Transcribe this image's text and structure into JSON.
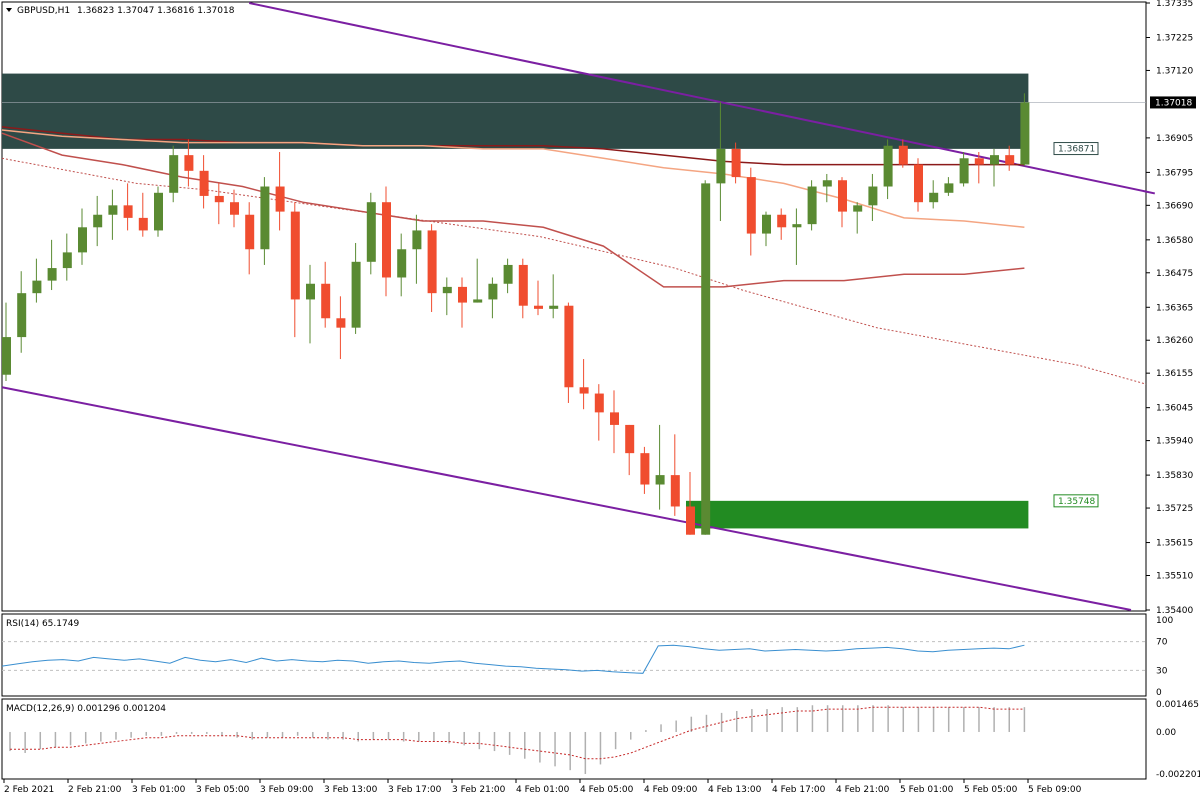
{
  "header": {
    "symbol": "GBPUSD,H1",
    "ohlc": "1.36823 1.37047 1.36816 1.37018"
  },
  "price_axis": {
    "ticks": [
      "1.37335",
      "1.37225",
      "1.37120",
      "1.37018",
      "1.36905",
      "1.36871",
      "1.36795",
      "1.36690",
      "1.36580",
      "1.36475",
      "1.36365",
      "1.36260",
      "1.36155",
      "1.36045",
      "1.35940",
      "1.35830",
      "1.35748",
      "1.35725",
      "1.35615",
      "1.35510",
      "1.35400"
    ],
    "range": [
      1.354,
      1.37335
    ],
    "current_price": "1.37018",
    "level_upper": "1.36871",
    "level_lower": "1.35748"
  },
  "rsi": {
    "label": "RSI(14) 65.1749",
    "ticks": [
      "70",
      "30",
      "0"
    ],
    "top_tick": "100"
  },
  "macd": {
    "label": "MACD(12,26,9) 0.001296 0.001204",
    "ticks": [
      "0.001465",
      "0.00",
      "-0.002201"
    ]
  },
  "time_axis": {
    "labels": [
      "2 Feb 2021",
      "2 Feb 21:00",
      "3 Feb 01:00",
      "3 Feb 05:00",
      "3 Feb 09:00",
      "3 Feb 13:00",
      "3 Feb 17:00",
      "3 Feb 21:00",
      "4 Feb 01:00",
      "4 Feb 05:00",
      "4 Feb 09:00",
      "4 Feb 13:00",
      "4 Feb 17:00",
      "4 Feb 21:00",
      "5 Feb 01:00",
      "5 Feb 05:00",
      "5 Feb 09:00"
    ]
  },
  "colors": {
    "bull": "#5a8a32",
    "bear": "#f04d2f",
    "channel": "#7b1fa2",
    "zone_top": "#2e4a47",
    "zone_bottom": "#228b22",
    "ma_dark": "#8b1a1a",
    "ma_light": "#f4a582",
    "ma_mid": "#c0504d",
    "rsi_line": "#3a8fd0",
    "macd_signal": "#c62828",
    "grid": "#c0c0c0"
  },
  "chart_data": {
    "type": "candlestick",
    "symbol": "GBPUSD",
    "timeframe": "H1",
    "ylim": [
      1.354,
      1.37335
    ],
    "candles": [
      {
        "o": 1.3615,
        "h": 1.3638,
        "l": 1.3613,
        "c": 1.3627
      },
      {
        "o": 1.3627,
        "h": 1.3648,
        "l": 1.3622,
        "c": 1.3641
      },
      {
        "o": 1.3641,
        "h": 1.3652,
        "l": 1.3638,
        "c": 1.3645
      },
      {
        "o": 1.3645,
        "h": 1.3658,
        "l": 1.3642,
        "c": 1.3649
      },
      {
        "o": 1.3649,
        "h": 1.366,
        "l": 1.3645,
        "c": 1.3654
      },
      {
        "o": 1.3654,
        "h": 1.3668,
        "l": 1.365,
        "c": 1.3662
      },
      {
        "o": 1.3662,
        "h": 1.3672,
        "l": 1.3656,
        "c": 1.3666
      },
      {
        "o": 1.3666,
        "h": 1.3674,
        "l": 1.3658,
        "c": 1.3669
      },
      {
        "o": 1.3669,
        "h": 1.3676,
        "l": 1.3661,
        "c": 1.3665
      },
      {
        "o": 1.3665,
        "h": 1.3673,
        "l": 1.3659,
        "c": 1.3661
      },
      {
        "o": 1.3661,
        "h": 1.3675,
        "l": 1.3659,
        "c": 1.3673
      },
      {
        "o": 1.3673,
        "h": 1.3688,
        "l": 1.367,
        "c": 1.3685
      },
      {
        "o": 1.3685,
        "h": 1.369,
        "l": 1.3675,
        "c": 1.368
      },
      {
        "o": 1.368,
        "h": 1.3685,
        "l": 1.3668,
        "c": 1.3672
      },
      {
        "o": 1.3672,
        "h": 1.3676,
        "l": 1.3663,
        "c": 1.367
      },
      {
        "o": 1.367,
        "h": 1.3674,
        "l": 1.3662,
        "c": 1.3666
      },
      {
        "o": 1.3666,
        "h": 1.367,
        "l": 1.3647,
        "c": 1.3655
      },
      {
        "o": 1.3655,
        "h": 1.3678,
        "l": 1.365,
        "c": 1.3675
      },
      {
        "o": 1.3675,
        "h": 1.3686,
        "l": 1.3661,
        "c": 1.3667
      },
      {
        "o": 1.3667,
        "h": 1.367,
        "l": 1.3627,
        "c": 1.3639
      },
      {
        "o": 1.3639,
        "h": 1.365,
        "l": 1.3625,
        "c": 1.3644
      },
      {
        "o": 1.3644,
        "h": 1.3651,
        "l": 1.363,
        "c": 1.3633
      },
      {
        "o": 1.3633,
        "h": 1.364,
        "l": 1.362,
        "c": 1.363
      },
      {
        "o": 1.363,
        "h": 1.3657,
        "l": 1.3628,
        "c": 1.3651
      },
      {
        "o": 1.3651,
        "h": 1.3673,
        "l": 1.3647,
        "c": 1.367
      },
      {
        "o": 1.367,
        "h": 1.3675,
        "l": 1.364,
        "c": 1.3646
      },
      {
        "o": 1.3646,
        "h": 1.366,
        "l": 1.364,
        "c": 1.3655
      },
      {
        "o": 1.3655,
        "h": 1.3666,
        "l": 1.3644,
        "c": 1.3661
      },
      {
        "o": 1.3661,
        "h": 1.3663,
        "l": 1.3635,
        "c": 1.3641
      },
      {
        "o": 1.3641,
        "h": 1.3646,
        "l": 1.3634,
        "c": 1.3643
      },
      {
        "o": 1.3643,
        "h": 1.3646,
        "l": 1.363,
        "c": 1.3638
      },
      {
        "o": 1.3638,
        "h": 1.3652,
        "l": 1.3638,
        "c": 1.3639
      },
      {
        "o": 1.3639,
        "h": 1.3646,
        "l": 1.3633,
        "c": 1.3644
      },
      {
        "o": 1.3644,
        "h": 1.3652,
        "l": 1.3641,
        "c": 1.365
      },
      {
        "o": 1.365,
        "h": 1.3652,
        "l": 1.3633,
        "c": 1.3637
      },
      {
        "o": 1.3637,
        "h": 1.3645,
        "l": 1.3634,
        "c": 1.3636
      },
      {
        "o": 1.3636,
        "h": 1.3647,
        "l": 1.3633,
        "c": 1.3637
      },
      {
        "o": 1.3637,
        "h": 1.3638,
        "l": 1.3606,
        "c": 1.3611
      },
      {
        "o": 1.3611,
        "h": 1.362,
        "l": 1.3604,
        "c": 1.3609
      },
      {
        "o": 1.3609,
        "h": 1.3612,
        "l": 1.3594,
        "c": 1.3603
      },
      {
        "o": 1.3603,
        "h": 1.361,
        "l": 1.359,
        "c": 1.3599
      },
      {
        "o": 1.3599,
        "h": 1.3599,
        "l": 1.3583,
        "c": 1.359
      },
      {
        "o": 1.359,
        "h": 1.3592,
        "l": 1.3577,
        "c": 1.358
      },
      {
        "o": 1.358,
        "h": 1.3599,
        "l": 1.3572,
        "c": 1.3583
      },
      {
        "o": 1.3583,
        "h": 1.3596,
        "l": 1.357,
        "c": 1.3573
      },
      {
        "o": 1.3573,
        "h": 1.3584,
        "l": 1.3564,
        "c": 1.3564
      },
      {
        "o": 1.3564,
        "h": 1.3677,
        "l": 1.3564,
        "c": 1.3676
      },
      {
        "o": 1.3676,
        "h": 1.3702,
        "l": 1.3664,
        "c": 1.3687
      },
      {
        "o": 1.3687,
        "h": 1.3689,
        "l": 1.3676,
        "c": 1.3678
      },
      {
        "o": 1.3678,
        "h": 1.3681,
        "l": 1.3653,
        "c": 1.366
      },
      {
        "o": 1.366,
        "h": 1.3667,
        "l": 1.3656,
        "c": 1.3666
      },
      {
        "o": 1.3666,
        "h": 1.3668,
        "l": 1.3658,
        "c": 1.3662
      },
      {
        "o": 1.3662,
        "h": 1.3668,
        "l": 1.365,
        "c": 1.3663
      },
      {
        "o": 1.3663,
        "h": 1.3677,
        "l": 1.3661,
        "c": 1.3675
      },
      {
        "o": 1.3675,
        "h": 1.3679,
        "l": 1.367,
        "c": 1.3677
      },
      {
        "o": 1.3677,
        "h": 1.3678,
        "l": 1.3662,
        "c": 1.3667
      },
      {
        "o": 1.3667,
        "h": 1.367,
        "l": 1.366,
        "c": 1.3669
      },
      {
        "o": 1.3669,
        "h": 1.3679,
        "l": 1.3664,
        "c": 1.3675
      },
      {
        "o": 1.3675,
        "h": 1.369,
        "l": 1.3671,
        "c": 1.3688
      },
      {
        "o": 1.3688,
        "h": 1.369,
        "l": 1.3681,
        "c": 1.3682
      },
      {
        "o": 1.3682,
        "h": 1.3684,
        "l": 1.3667,
        "c": 1.367
      },
      {
        "o": 1.367,
        "h": 1.3677,
        "l": 1.3668,
        "c": 1.3673
      },
      {
        "o": 1.3673,
        "h": 1.3678,
        "l": 1.3672,
        "c": 1.3676
      },
      {
        "o": 1.3676,
        "h": 1.3686,
        "l": 1.3675,
        "c": 1.3684
      },
      {
        "o": 1.3684,
        "h": 1.3686,
        "l": 1.3676,
        "c": 1.3682
      },
      {
        "o": 1.3682,
        "h": 1.3687,
        "l": 1.3675,
        "c": 1.3685
      },
      {
        "o": 1.3685,
        "h": 1.3688,
        "l": 1.368,
        "c": 1.3682
      },
      {
        "o": 1.3682,
        "h": 1.37047,
        "l": 1.36816,
        "c": 1.37018
      }
    ],
    "moving_averages": [
      {
        "points": [
          1.3694,
          1.3692,
          1.369,
          1.369,
          1.3689,
          1.3689,
          1.3688,
          1.3688,
          1.3688,
          1.3688,
          1.3687,
          1.3685,
          1.3683,
          1.3682,
          1.3682,
          1.3682,
          1.3682,
          1.3682
        ]
      },
      {
        "points": [
          1.3693,
          1.3691,
          1.369,
          1.3689,
          1.3689,
          1.3689,
          1.3688,
          1.3688,
          1.3687,
          1.3687,
          1.3684,
          1.3681,
          1.3679,
          1.3676,
          1.3671,
          1.3665,
          1.3664,
          1.3662
        ]
      },
      {
        "points": [
          1.3692,
          1.3685,
          1.3682,
          1.3678,
          1.3675,
          1.367,
          1.3667,
          1.3664,
          1.3664,
          1.3662,
          1.3656,
          1.3643,
          1.3643,
          1.3645,
          1.3645,
          1.3647,
          1.3647,
          1.3649
        ]
      },
      {
        "points": [
          1.3684,
          1.368,
          1.3676,
          1.3674,
          1.3671,
          1.3668,
          1.3665,
          1.3662,
          1.3659,
          1.3654,
          1.3649,
          1.3642,
          1.3636,
          1.363,
          1.3626,
          1.3622,
          1.3618,
          1.3612
        ]
      }
    ],
    "channel": {
      "upper": [
        {
          "t": 16,
          "y": 1.37335
        },
        {
          "t": 69,
          "y": 1.36795
        }
      ],
      "lower": [
        {
          "t": 0,
          "y": 1.3611
        },
        {
          "t": 69,
          "y": 1.354
        }
      ]
    },
    "zones": [
      {
        "y_top": 1.3711,
        "y_bottom": 1.3687
      },
      {
        "y_top": 1.35748,
        "y_bottom": 1.3566
      }
    ],
    "rsi": {
      "range": [
        0,
        100
      ],
      "levels": [
        70,
        30
      ],
      "values": [
        36,
        39,
        42,
        44,
        45,
        43,
        48,
        46,
        44,
        46,
        43,
        40,
        48,
        44,
        42,
        45,
        41,
        47,
        43,
        45,
        43,
        42,
        44,
        43,
        40,
        42,
        43,
        41,
        40,
        42,
        43,
        40,
        38,
        36,
        35,
        33,
        32,
        31,
        29,
        30,
        28,
        27,
        26,
        64,
        65,
        63,
        60,
        58,
        59,
        60,
        57,
        58,
        59,
        58,
        57,
        58,
        60,
        61,
        62,
        60,
        57,
        56,
        58,
        59,
        60,
        61,
        60,
        65
      ]
    },
    "macd": {
      "range": [
        -0.002201,
        0.001465
      ],
      "histogram": [
        -0.001,
        -0.0011,
        -0.0009,
        -0.0008,
        -0.0007,
        -0.0006,
        -0.0005,
        -0.0004,
        -0.0003,
        -0.0002,
        -0.0002,
        -0.0001,
        -0.0001,
        -0.0001,
        -0.0002,
        -0.0003,
        -0.0004,
        -0.0003,
        -0.0003,
        -0.0002,
        -0.0003,
        -0.0004,
        -0.0004,
        -0.0005,
        -0.0004,
        -0.0004,
        -0.0005,
        -0.0005,
        -0.0005,
        -0.0006,
        -0.0007,
        -0.0009,
        -0.001,
        -0.0012,
        -0.0014,
        -0.0016,
        -0.0018,
        -0.002,
        -0.0022,
        -0.0017,
        -0.0009,
        -0.0004,
        0.0001,
        0.0004,
        0.0006,
        0.0008,
        0.0009,
        0.001,
        0.0011,
        0.0012,
        0.0012,
        0.0013,
        0.0013,
        0.0014,
        0.0014,
        0.0014,
        0.0014,
        0.0014,
        0.0014,
        0.0013,
        0.0013,
        0.0013,
        0.0013,
        0.0013,
        0.0013,
        0.0013,
        0.0013,
        0.0013
      ],
      "signal": [
        -0.0009,
        -0.0009,
        -0.0009,
        -0.0008,
        -0.0008,
        -0.0007,
        -0.0006,
        -0.0005,
        -0.0004,
        -0.0003,
        -0.0003,
        -0.0002,
        -0.0002,
        -0.0002,
        -0.0002,
        -0.0002,
        -0.0003,
        -0.0003,
        -0.0003,
        -0.0003,
        -0.0003,
        -0.0003,
        -0.0003,
        -0.0004,
        -0.0004,
        -0.0004,
        -0.0004,
        -0.0005,
        -0.0005,
        -0.0005,
        -0.0006,
        -0.0006,
        -0.0007,
        -0.0008,
        -0.0009,
        -0.001,
        -0.0011,
        -0.0012,
        -0.0014,
        -0.0014,
        -0.0013,
        -0.0011,
        -0.0008,
        -0.0005,
        -0.0002,
        0.0001,
        0.0003,
        0.0005,
        0.0007,
        0.0008,
        0.0009,
        0.001,
        0.0011,
        0.0011,
        0.0012,
        0.0012,
        0.0012,
        0.0013,
        0.0013,
        0.0013,
        0.0013,
        0.0013,
        0.0013,
        0.0013,
        0.0013,
        0.0012,
        0.0012,
        0.0012
      ]
    }
  }
}
